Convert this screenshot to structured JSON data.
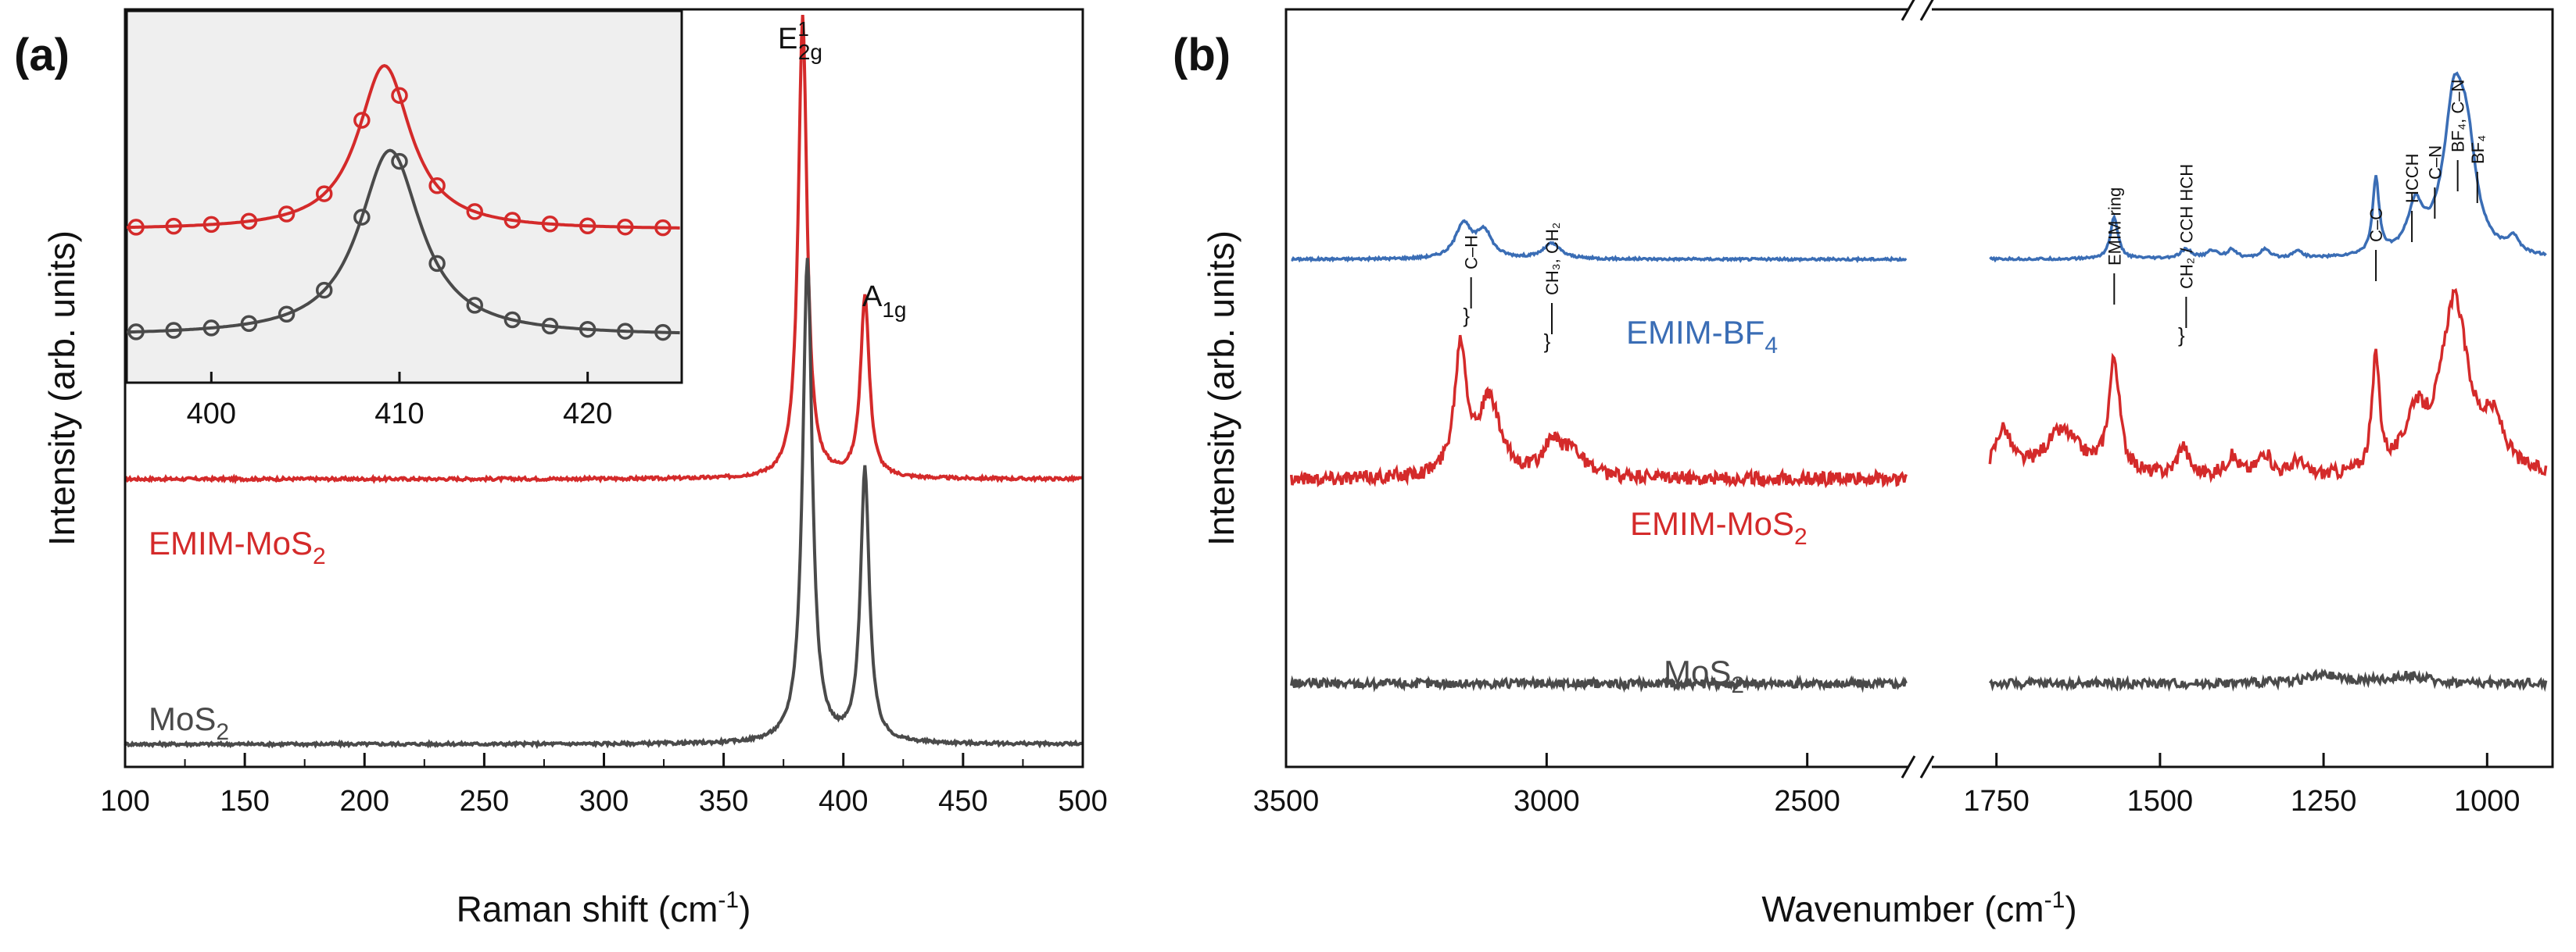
{
  "chart_data": [
    {
      "panel": "(a)",
      "type": "line",
      "xlabel": "Raman shift (cm",
      "xlabel_sup": "-1",
      "xlabel_close": ")",
      "ylabel": "Intensity (arb. units)",
      "xlim": [
        100,
        500
      ],
      "ylim": [
        0,
        1
      ],
      "xticks": [
        "100",
        "150",
        "200",
        "250",
        "300",
        "350",
        "400",
        "450",
        "500"
      ],
      "x_tick_values": [
        100,
        150,
        200,
        250,
        300,
        350,
        400,
        450,
        500
      ],
      "grid": false,
      "series": [
        {
          "name": "EMIM-MoS",
          "sub": "2",
          "color": "#d42a2a",
          "offset": 0.35,
          "peaks": [
            {
              "x": 383,
              "height": 0.61,
              "width": 2.2
            },
            {
              "x": 409,
              "height": 0.24,
              "width": 2.2
            }
          ],
          "noise": 0.004
        },
        {
          "name": "MoS",
          "sub": "2",
          "color": "#4a4a4a",
          "offset": 0.0,
          "peaks": [
            {
              "x": 385,
              "height": 0.64,
              "width": 2.4
            },
            {
              "x": 409,
              "height": 0.36,
              "width": 2.2
            }
          ],
          "noise": 0.004
        }
      ],
      "peak_labels": [
        {
          "main": "E",
          "sup": "1",
          "sub": "2g",
          "x": 383
        },
        {
          "main": "A",
          "sub": "1g",
          "x": 409
        }
      ],
      "inset": {
        "xlim": [
          395.5,
          425
        ],
        "xticks": [
          "400",
          "410",
          "420"
        ],
        "x_tick_values": [
          400,
          410,
          420
        ],
        "series": [
          {
            "name": "EMIM-MoS2",
            "color": "#d42a2a",
            "center": 409.2,
            "width": 1.7,
            "baseline": 0.2,
            "amplitude": 0.62,
            "points_x": [
              396,
              398,
              400,
              402,
              404,
              406,
              408,
              410,
              412,
              414,
              416,
              418,
              420,
              422,
              424
            ]
          },
          {
            "name": "MoS2",
            "color": "#4a4a4a",
            "center": 409.5,
            "width": 2.0,
            "baseline": -0.2,
            "amplitude": 0.7,
            "points_x": [
              396,
              398,
              400,
              402,
              404,
              406,
              408,
              410,
              412,
              414,
              416,
              418,
              420,
              422,
              424
            ]
          }
        ]
      }
    },
    {
      "panel": "(b)",
      "type": "line",
      "xlabel": "Wavenumber (cm",
      "xlabel_sup": "-1",
      "xlabel_close": ")",
      "ylabel": "Intensity (arb. units)",
      "broken_axis": true,
      "left_segment": {
        "xlim": [
          3500,
          2300
        ],
        "xticks": [
          "3500",
          "3000",
          "2500"
        ],
        "x_tick_values": [
          3500,
          3000,
          2500
        ]
      },
      "right_segment": {
        "xlim": [
          1850,
          900
        ],
        "xticks": [
          "1750",
          "1500",
          "1250",
          "1000"
        ],
        "x_tick_values": [
          1750,
          1500,
          1250,
          1000
        ]
      },
      "grid": false,
      "series": [
        {
          "name": "EMIM-BF",
          "sub": "4",
          "color": "#3a6db5",
          "offset": 0.64,
          "noise": 0.003,
          "peaks": [
            {
              "x": 3160,
              "height": 0.045,
              "width": 18
            },
            {
              "x": 3120,
              "height": 0.035,
              "width": 18
            },
            {
              "x": 2990,
              "height": 0.02,
              "width": 20
            },
            {
              "x": 1570,
              "height": 0.055,
              "width": 7
            },
            {
              "x": 1460,
              "height": 0.012,
              "width": 10
            },
            {
              "x": 1420,
              "height": 0.01,
              "width": 10
            },
            {
              "x": 1390,
              "height": 0.012,
              "width": 8
            },
            {
              "x": 1340,
              "height": 0.012,
              "width": 8
            },
            {
              "x": 1290,
              "height": 0.01,
              "width": 8
            },
            {
              "x": 1170,
              "height": 0.1,
              "width": 6
            },
            {
              "x": 1110,
              "height": 0.06,
              "width": 14
            },
            {
              "x": 1050,
              "height": 0.2,
              "width": 20
            },
            {
              "x": 1030,
              "height": 0.1,
              "width": 16
            },
            {
              "x": 960,
              "height": 0.02,
              "width": 10
            }
          ]
        },
        {
          "name": "EMIM-MoS",
          "sub": "2",
          "color": "#d42a2a",
          "offset": 0.35,
          "noise": 0.018,
          "peaks": [
            {
              "x": 3165,
              "height": 0.17,
              "width": 14
            },
            {
              "x": 3110,
              "height": 0.1,
              "width": 25
            },
            {
              "x": 2990,
              "height": 0.04,
              "width": 20
            },
            {
              "x": 2950,
              "height": 0.035,
              "width": 25
            },
            {
              "x": 1740,
              "height": 0.06,
              "width": 15
            },
            {
              "x": 1650,
              "height": 0.06,
              "width": 35
            },
            {
              "x": 1570,
              "height": 0.15,
              "width": 10
            },
            {
              "x": 1465,
              "height": 0.04,
              "width": 10
            },
            {
              "x": 1390,
              "height": 0.025,
              "width": 12
            },
            {
              "x": 1340,
              "height": 0.03,
              "width": 12
            },
            {
              "x": 1290,
              "height": 0.02,
              "width": 10
            },
            {
              "x": 1170,
              "height": 0.15,
              "width": 7
            },
            {
              "x": 1110,
              "height": 0.07,
              "width": 18
            },
            {
              "x": 1050,
              "height": 0.23,
              "width": 25
            },
            {
              "x": 990,
              "height": 0.06,
              "width": 20
            }
          ]
        },
        {
          "name": "MoS",
          "sub": "2",
          "color": "#4a4a4a",
          "offset": 0.08,
          "noise": 0.012,
          "peaks": [
            {
              "x": 1250,
              "height": 0.01,
              "width": 40
            },
            {
              "x": 1120,
              "height": 0.01,
              "width": 30
            }
          ]
        }
      ],
      "annotations": [
        {
          "text": "C–H",
          "x": 3145,
          "brace": true,
          "dir": "up"
        },
        {
          "text": "CH₃, CH₂",
          "x": 2990,
          "brace": true,
          "dir": "up"
        },
        {
          "text": "EMIM ring",
          "x": 1570,
          "brace": false,
          "dir": "up"
        },
        {
          "text": "CH₂ / CCH HCH",
          "x": 1460,
          "brace": true,
          "dir": "up"
        },
        {
          "text": "C–C",
          "x": 1170,
          "brace": false,
          "dir": "up"
        },
        {
          "text": "HCCH",
          "x": 1115,
          "brace": false,
          "dir": "up"
        },
        {
          "text": "C–N",
          "x": 1080,
          "brace": false,
          "dir": "up"
        },
        {
          "text": "BF₄, C–N",
          "x": 1045,
          "brace": false,
          "dir": "up"
        },
        {
          "text": "BF₄",
          "x": 1015,
          "brace": false,
          "dir": "up"
        }
      ]
    }
  ]
}
